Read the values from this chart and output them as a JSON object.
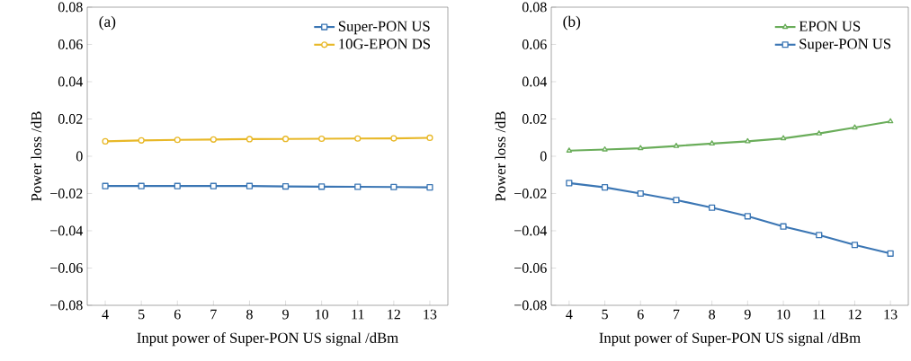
{
  "chart_data": [
    {
      "type": "line",
      "annotations": [
        "(a)"
      ],
      "xlabel": "Input power of Super-PON US signal /dBm",
      "ylabel": "Power loss /dB",
      "x": [
        4,
        5,
        6,
        7,
        8,
        9,
        10,
        11,
        12,
        13
      ],
      "series": [
        {
          "name": "Super-PON US",
          "color": "#3b76b4",
          "marker": "square",
          "values": [
            -0.016,
            -0.016,
            -0.016,
            -0.016,
            -0.016,
            -0.0162,
            -0.0163,
            -0.0164,
            -0.0165,
            -0.0167
          ]
        },
        {
          "name": "10G-EPON DS",
          "color": "#e8b828",
          "marker": "circle",
          "values": [
            0.008,
            0.0085,
            0.0088,
            0.009,
            0.0092,
            0.0093,
            0.0094,
            0.0095,
            0.0096,
            0.0099
          ]
        }
      ],
      "xlim": [
        3.5,
        13.5
      ],
      "xticks": [
        4,
        5,
        6,
        7,
        8,
        9,
        10,
        11,
        12,
        13
      ],
      "ylim": [
        -0.08,
        0.08
      ],
      "yticks": [
        {
          "value": -0.08,
          "label": "−0.08"
        },
        {
          "value": -0.06,
          "label": "−0.06"
        },
        {
          "value": -0.04,
          "label": "−0.04"
        },
        {
          "value": -0.02,
          "label": "−0.02"
        },
        {
          "value": 0,
          "label": "0"
        },
        {
          "value": 0.02,
          "label": "0.02"
        },
        {
          "value": 0.04,
          "label": "0.04"
        },
        {
          "value": 0.06,
          "label": "0.06"
        },
        {
          "value": 0.08,
          "label": "0.08"
        }
      ],
      "legend": "top right",
      "grid": false
    },
    {
      "type": "line",
      "annotations": [
        "(b)"
      ],
      "xlabel": "Input power of Super-PON US signal /dBm",
      "ylabel": "Power loss /dB",
      "x": [
        4,
        5,
        6,
        7,
        8,
        9,
        10,
        11,
        12,
        13
      ],
      "series": [
        {
          "name": "EPON US",
          "color": "#6aad5a",
          "marker": "triangle",
          "values": [
            0.003,
            0.0036,
            0.0043,
            0.0055,
            0.0068,
            0.008,
            0.0096,
            0.0122,
            0.0154,
            0.0187
          ]
        },
        {
          "name": "Super-PON US",
          "color": "#3b76b4",
          "marker": "square",
          "values": [
            -0.0144,
            -0.0167,
            -0.02,
            -0.0235,
            -0.0276,
            -0.0322,
            -0.0377,
            -0.0423,
            -0.0476,
            -0.0522
          ]
        }
      ],
      "xlim": [
        3.5,
        13.5
      ],
      "xticks": [
        4,
        5,
        6,
        7,
        8,
        9,
        10,
        11,
        12,
        13
      ],
      "ylim": [
        -0.08,
        0.08
      ],
      "yticks": [
        {
          "value": -0.08,
          "label": "−0.08"
        },
        {
          "value": -0.06,
          "label": "−0.06"
        },
        {
          "value": -0.04,
          "label": "−0.04"
        },
        {
          "value": -0.02,
          "label": "−0.02"
        },
        {
          "value": 0,
          "label": "0"
        },
        {
          "value": 0.02,
          "label": "0.02"
        },
        {
          "value": 0.04,
          "label": "0.04"
        },
        {
          "value": 0.06,
          "label": "0.06"
        },
        {
          "value": 0.08,
          "label": "0.08"
        }
      ],
      "legend": "top right",
      "grid": false
    }
  ]
}
